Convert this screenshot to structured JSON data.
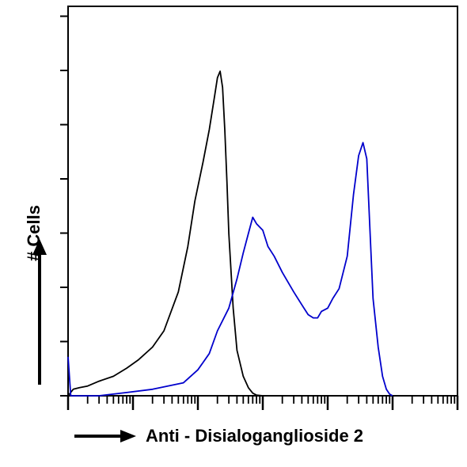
{
  "chart_data": {
    "type": "line",
    "title": "",
    "xlabel": "Anti - Disialoganglioside 2",
    "ylabel": "# Cells",
    "x_scale": "log",
    "xlim": [
      1,
      1000000
    ],
    "ylim": [
      0,
      1
    ],
    "grid": false,
    "legend": "none",
    "series": [
      {
        "color": "#000000",
        "x": [
          1,
          1.2,
          1.5,
          2,
          3,
          5,
          8,
          12,
          20,
          30,
          50,
          70,
          90,
          120,
          150,
          180,
          200,
          220,
          240,
          260,
          280,
          300,
          350,
          400,
          500,
          600,
          700,
          800,
          1000
        ],
        "y": [
          0.0,
          0.02,
          0.025,
          0.03,
          0.045,
          0.06,
          0.085,
          0.11,
          0.15,
          0.2,
          0.32,
          0.46,
          0.6,
          0.72,
          0.82,
          0.92,
          0.98,
          1.0,
          0.95,
          0.82,
          0.66,
          0.5,
          0.27,
          0.14,
          0.06,
          0.025,
          0.008,
          0.002,
          0.0
        ]
      },
      {
        "color": "#0000cc",
        "x": [
          1,
          1.1,
          1.5,
          3,
          8,
          20,
          60,
          100,
          150,
          200,
          300,
          400,
          500,
          600,
          700,
          800,
          1000,
          1200,
          1500,
          2000,
          3000,
          4000,
          5000,
          6000,
          7000,
          8000,
          10000,
          12000,
          15000,
          20000,
          25000,
          30000,
          35000,
          40000,
          45000,
          50000,
          60000,
          70000,
          80000,
          90000,
          100000
        ],
        "y": [
          0.12,
          0.0,
          0.0,
          0.0,
          0.01,
          0.02,
          0.04,
          0.08,
          0.13,
          0.2,
          0.27,
          0.36,
          0.44,
          0.5,
          0.55,
          0.53,
          0.51,
          0.46,
          0.43,
          0.38,
          0.32,
          0.28,
          0.25,
          0.24,
          0.24,
          0.26,
          0.27,
          0.3,
          0.33,
          0.43,
          0.62,
          0.74,
          0.78,
          0.73,
          0.5,
          0.3,
          0.15,
          0.06,
          0.02,
          0.005,
          0.0
        ]
      }
    ]
  }
}
